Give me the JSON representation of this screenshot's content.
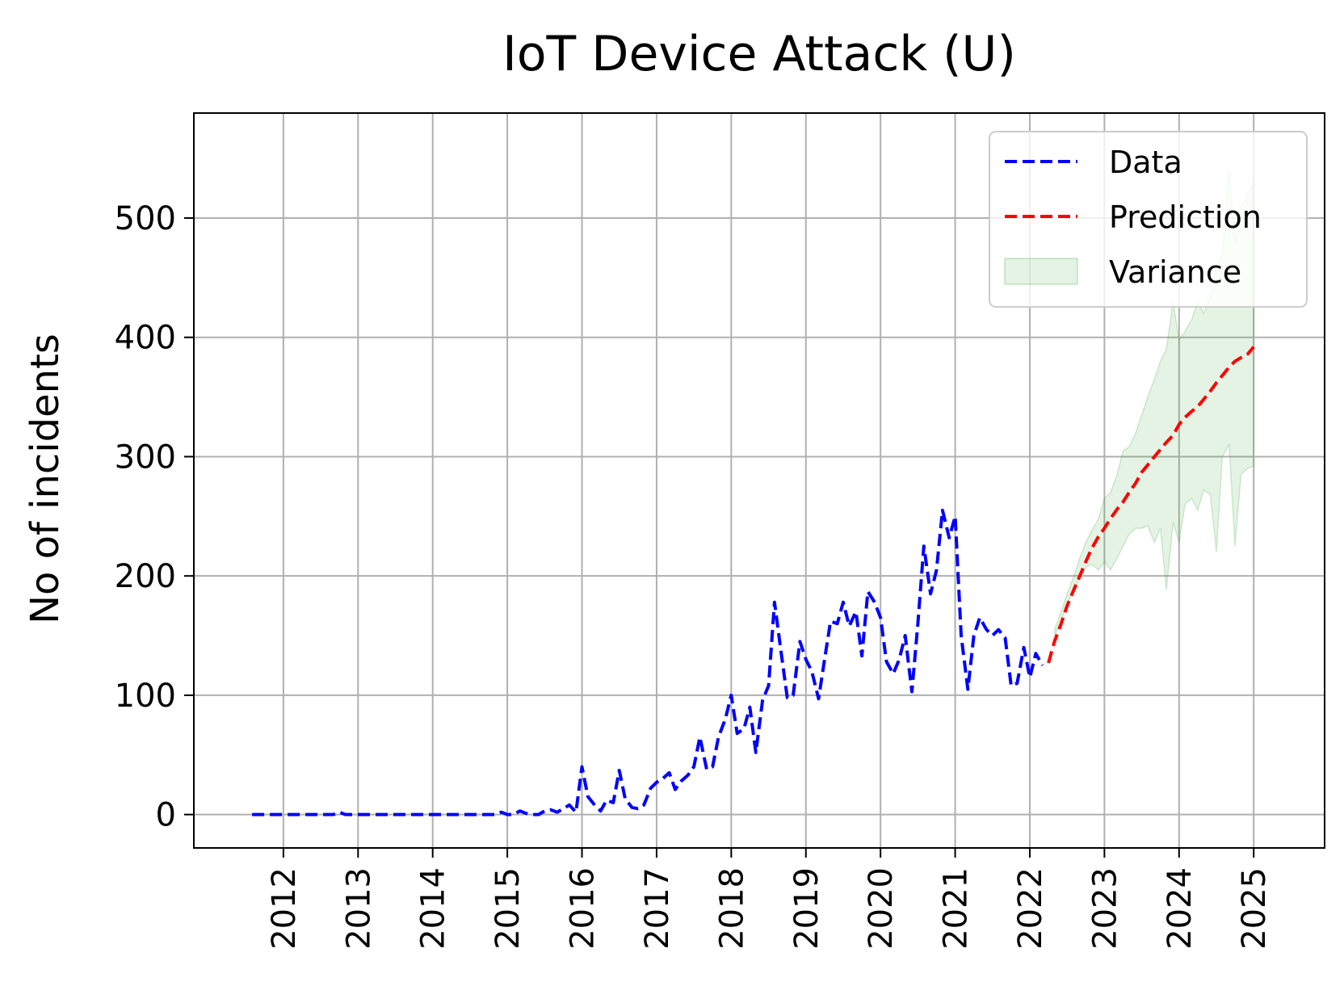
{
  "chart_data": {
    "type": "line",
    "title": "IoT Device Attack (U)",
    "xlabel": "",
    "ylabel": "No of incidents",
    "xlim": [
      2010.8,
      2025.95
    ],
    "ylim": [
      -28,
      588
    ],
    "x_ticks": [
      2012,
      2013,
      2014,
      2015,
      2016,
      2017,
      2018,
      2019,
      2020,
      2021,
      2022,
      2023,
      2024,
      2025
    ],
    "y_ticks": [
      0,
      100,
      200,
      300,
      400,
      500
    ],
    "grid": true,
    "legend_position": "top-right",
    "colors": {
      "data": "#0000ff",
      "prediction": "#ff0000",
      "variance": "#2ca02c"
    },
    "legend": [
      {
        "key": "data",
        "label": "Data"
      },
      {
        "key": "prediction",
        "label": "Prediction"
      },
      {
        "key": "variance",
        "label": "Variance"
      }
    ],
    "series": [
      {
        "name": "Data",
        "style": "dashed",
        "points": [
          [
            2011.58,
            0
          ],
          [
            2011.67,
            0
          ],
          [
            2011.75,
            0
          ],
          [
            2011.83,
            0
          ],
          [
            2011.92,
            0
          ],
          [
            2012.0,
            0
          ],
          [
            2012.08,
            0
          ],
          [
            2012.17,
            0
          ],
          [
            2012.25,
            0
          ],
          [
            2012.33,
            0
          ],
          [
            2012.42,
            0
          ],
          [
            2012.5,
            0
          ],
          [
            2012.58,
            0
          ],
          [
            2012.67,
            0
          ],
          [
            2012.75,
            2
          ],
          [
            2012.83,
            0
          ],
          [
            2012.92,
            0
          ],
          [
            2013.0,
            0
          ],
          [
            2013.08,
            0
          ],
          [
            2013.17,
            0
          ],
          [
            2013.25,
            0
          ],
          [
            2013.33,
            0
          ],
          [
            2013.42,
            0
          ],
          [
            2013.5,
            0
          ],
          [
            2013.58,
            0
          ],
          [
            2013.67,
            0
          ],
          [
            2013.75,
            0
          ],
          [
            2013.83,
            0
          ],
          [
            2013.92,
            0
          ],
          [
            2014.0,
            0
          ],
          [
            2014.08,
            0
          ],
          [
            2014.17,
            0
          ],
          [
            2014.25,
            0
          ],
          [
            2014.33,
            0
          ],
          [
            2014.42,
            0
          ],
          [
            2014.5,
            0
          ],
          [
            2014.58,
            0
          ],
          [
            2014.67,
            0
          ],
          [
            2014.75,
            0
          ],
          [
            2014.83,
            0
          ],
          [
            2014.92,
            2
          ],
          [
            2015.0,
            0
          ],
          [
            2015.08,
            0
          ],
          [
            2015.17,
            3
          ],
          [
            2015.25,
            1
          ],
          [
            2015.33,
            0
          ],
          [
            2015.42,
            0
          ],
          [
            2015.5,
            3
          ],
          [
            2015.58,
            4
          ],
          [
            2015.67,
            2
          ],
          [
            2015.75,
            5
          ],
          [
            2015.83,
            8
          ],
          [
            2015.92,
            2
          ],
          [
            2016.0,
            40
          ],
          [
            2016.08,
            15
          ],
          [
            2016.17,
            8
          ],
          [
            2016.25,
            3
          ],
          [
            2016.33,
            12
          ],
          [
            2016.42,
            10
          ],
          [
            2016.5,
            37
          ],
          [
            2016.58,
            13
          ],
          [
            2016.67,
            6
          ],
          [
            2016.75,
            5
          ],
          [
            2016.83,
            8
          ],
          [
            2016.92,
            22
          ],
          [
            2017.0,
            27
          ],
          [
            2017.08,
            30
          ],
          [
            2017.17,
            35
          ],
          [
            2017.25,
            21
          ],
          [
            2017.33,
            28
          ],
          [
            2017.42,
            33
          ],
          [
            2017.5,
            40
          ],
          [
            2017.58,
            65
          ],
          [
            2017.67,
            38
          ],
          [
            2017.75,
            40
          ],
          [
            2017.83,
            65
          ],
          [
            2017.92,
            80
          ],
          [
            2018.0,
            100
          ],
          [
            2018.08,
            68
          ],
          [
            2018.17,
            72
          ],
          [
            2018.25,
            90
          ],
          [
            2018.33,
            52
          ],
          [
            2018.42,
            96
          ],
          [
            2018.5,
            108
          ],
          [
            2018.58,
            178
          ],
          [
            2018.67,
            135
          ],
          [
            2018.75,
            98
          ],
          [
            2018.83,
            100
          ],
          [
            2018.92,
            145
          ],
          [
            2019.0,
            130
          ],
          [
            2019.08,
            120
          ],
          [
            2019.17,
            97
          ],
          [
            2019.25,
            130
          ],
          [
            2019.33,
            162
          ],
          [
            2019.42,
            160
          ],
          [
            2019.5,
            178
          ],
          [
            2019.58,
            158
          ],
          [
            2019.67,
            170
          ],
          [
            2019.75,
            133
          ],
          [
            2019.83,
            187
          ],
          [
            2019.92,
            178
          ],
          [
            2020.0,
            165
          ],
          [
            2020.08,
            128
          ],
          [
            2020.17,
            118
          ],
          [
            2020.25,
            130
          ],
          [
            2020.33,
            150
          ],
          [
            2020.42,
            103
          ],
          [
            2020.5,
            160
          ],
          [
            2020.58,
            225
          ],
          [
            2020.67,
            185
          ],
          [
            2020.75,
            205
          ],
          [
            2020.83,
            255
          ],
          [
            2020.92,
            232
          ],
          [
            2021.0,
            250
          ],
          [
            2021.08,
            150
          ],
          [
            2021.17,
            105
          ],
          [
            2021.25,
            150
          ],
          [
            2021.33,
            165
          ],
          [
            2021.42,
            155
          ],
          [
            2021.5,
            150
          ],
          [
            2021.58,
            155
          ],
          [
            2021.67,
            148
          ],
          [
            2021.75,
            108
          ],
          [
            2021.83,
            110
          ],
          [
            2021.92,
            140
          ],
          [
            2022.0,
            115
          ],
          [
            2022.08,
            135
          ],
          [
            2022.17,
            125
          ]
        ]
      },
      {
        "name": "Prediction",
        "style": "dashed",
        "points": [
          [
            2022.25,
            127
          ],
          [
            2022.33,
            145
          ],
          [
            2022.42,
            160
          ],
          [
            2022.5,
            175
          ],
          [
            2022.58,
            187
          ],
          [
            2022.67,
            200
          ],
          [
            2022.75,
            212
          ],
          [
            2022.83,
            223
          ],
          [
            2022.92,
            233
          ],
          [
            2023.0,
            240
          ],
          [
            2023.08,
            248
          ],
          [
            2023.17,
            256
          ],
          [
            2023.25,
            262
          ],
          [
            2023.33,
            270
          ],
          [
            2023.42,
            278
          ],
          [
            2023.5,
            287
          ],
          [
            2023.58,
            293
          ],
          [
            2023.67,
            300
          ],
          [
            2023.75,
            306
          ],
          [
            2023.83,
            312
          ],
          [
            2023.92,
            318
          ],
          [
            2024.0,
            327
          ],
          [
            2024.08,
            333
          ],
          [
            2024.17,
            338
          ],
          [
            2024.25,
            342
          ],
          [
            2024.33,
            348
          ],
          [
            2024.42,
            355
          ],
          [
            2024.5,
            362
          ],
          [
            2024.58,
            368
          ],
          [
            2024.67,
            375
          ],
          [
            2024.75,
            380
          ],
          [
            2024.83,
            383
          ],
          [
            2024.92,
            386
          ],
          [
            2025.0,
            392
          ]
        ]
      }
    ],
    "variance_band": {
      "name": "Variance",
      "x": [
        2022.33,
        2022.42,
        2022.5,
        2022.58,
        2022.67,
        2022.75,
        2022.83,
        2022.92,
        2023.0,
        2023.08,
        2023.17,
        2023.25,
        2023.33,
        2023.42,
        2023.5,
        2023.58,
        2023.67,
        2023.75,
        2023.83,
        2023.92,
        2024.0,
        2024.08,
        2024.17,
        2024.25,
        2024.33,
        2024.42,
        2024.5,
        2024.58,
        2024.67,
        2024.75,
        2024.83,
        2024.92,
        2025.0
      ],
      "lower": [
        150,
        162,
        176,
        188,
        198,
        207,
        210,
        205,
        212,
        205,
        215,
        225,
        235,
        240,
        240,
        242,
        228,
        240,
        188,
        245,
        228,
        260,
        265,
        255,
        272,
        268,
        220,
        300,
        310,
        225,
        285,
        290,
        292
      ],
      "upper": [
        155,
        170,
        185,
        198,
        215,
        228,
        238,
        248,
        265,
        270,
        285,
        305,
        308,
        320,
        335,
        350,
        365,
        380,
        390,
        430,
        398,
        405,
        415,
        430,
        420,
        435,
        460,
        470,
        540,
        480,
        510,
        520,
        530
      ]
    }
  }
}
